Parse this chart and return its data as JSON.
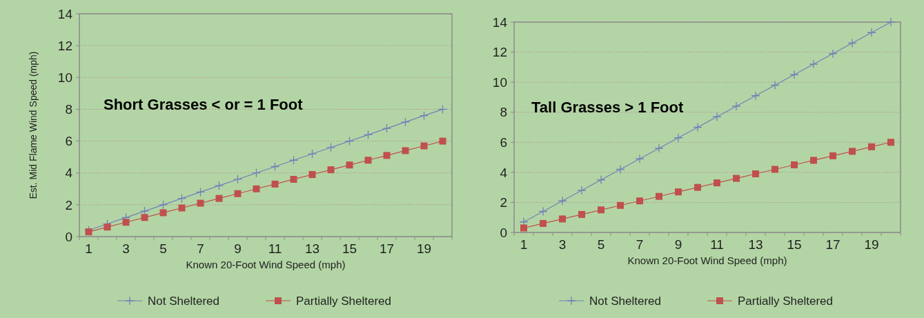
{
  "chart_data": [
    {
      "type": "line",
      "annotations": [
        "Short Grasses < or = 1 Foot"
      ],
      "xlabel": "Known 20-Foot Wind Speed (mph)",
      "ylabel": "Est. Mid Flame Wind Speed (mph)",
      "x": [
        1,
        2,
        3,
        4,
        5,
        6,
        7,
        8,
        9,
        10,
        11,
        12,
        13,
        14,
        15,
        16,
        17,
        18,
        19,
        20
      ],
      "xlim": [
        0.5,
        20.5
      ],
      "xticks": [
        1,
        3,
        5,
        7,
        9,
        11,
        13,
        15,
        17,
        19
      ],
      "ylim": [
        0,
        14
      ],
      "yticks": [
        0,
        2,
        4,
        6,
        8,
        10,
        12,
        14
      ],
      "grid": "y",
      "legend": "bottom",
      "series": [
        {
          "name": "Not Sheltered",
          "color": "#7080b8",
          "marker": "cross",
          "values": [
            0.4,
            0.8,
            1.2,
            1.6,
            2.0,
            2.4,
            2.8,
            3.2,
            3.6,
            4.0,
            4.4,
            4.8,
            5.2,
            5.6,
            6.0,
            6.4,
            6.8,
            7.2,
            7.6,
            8.0
          ]
        },
        {
          "name": "Partially Sheltered",
          "color": "#c0504d",
          "marker": "square",
          "values": [
            0.3,
            0.6,
            0.9,
            1.2,
            1.5,
            1.8,
            2.1,
            2.4,
            2.7,
            3.0,
            3.3,
            3.6,
            3.9,
            4.2,
            4.5,
            4.8,
            5.1,
            5.4,
            5.7,
            6.0
          ]
        }
      ]
    },
    {
      "type": "line",
      "annotations": [
        "Tall Grasses > 1 Foot"
      ],
      "xlabel": "Known 20-Foot Wind Speed (mph)",
      "x": [
        1,
        2,
        3,
        4,
        5,
        6,
        7,
        8,
        9,
        10,
        11,
        12,
        13,
        14,
        15,
        16,
        17,
        18,
        19,
        20
      ],
      "xlim": [
        0.5,
        20.5
      ],
      "xticks": [
        1,
        3,
        5,
        7,
        9,
        11,
        13,
        15,
        17,
        19
      ],
      "ylim": [
        0,
        14
      ],
      "yticks": [
        0,
        2,
        4,
        6,
        8,
        10,
        12,
        14
      ],
      "grid": "y",
      "legend": "bottom",
      "series": [
        {
          "name": "Not Sheltered",
          "color": "#7080b8",
          "marker": "cross",
          "values": [
            0.7,
            1.4,
            2.1,
            2.8,
            3.5,
            4.2,
            4.9,
            5.6,
            6.3,
            7.0,
            7.7,
            8.4,
            9.1,
            9.8,
            10.5,
            11.2,
            11.9,
            12.6,
            13.3,
            14.0
          ]
        },
        {
          "name": "Partially Sheltered",
          "color": "#c0504d",
          "marker": "square",
          "values": [
            0.3,
            0.6,
            0.9,
            1.2,
            1.5,
            1.8,
            2.1,
            2.4,
            2.7,
            3.0,
            3.3,
            3.6,
            3.9,
            4.2,
            4.5,
            4.8,
            5.1,
            5.4,
            5.7,
            6.0
          ]
        }
      ]
    }
  ]
}
